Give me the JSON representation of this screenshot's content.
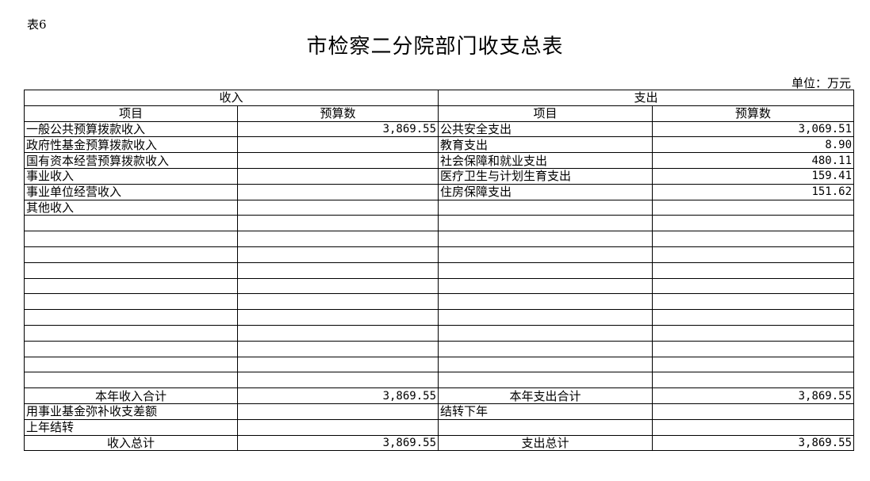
{
  "table_tag": "表6",
  "title": "市检察二分院部门收支总表",
  "unit": "单位：万元",
  "header": {
    "income": "收入",
    "expense": "支出",
    "item": "项目",
    "budget": "预算数"
  },
  "rows": [
    [
      "一般公共预算拨款收入",
      "3,869.55",
      "公共安全支出",
      "3,069.51"
    ],
    [
      "政府性基金预算拨款收入",
      "",
      "教育支出",
      "8.90"
    ],
    [
      "国有资本经营预算拨款收入",
      "",
      "社会保障和就业支出",
      "480.11"
    ],
    [
      "事业收入",
      "",
      "医疗卫生与计划生育支出",
      "159.41"
    ],
    [
      "事业单位经营收入",
      "",
      "住房保障支出",
      "151.62"
    ],
    [
      "其他收入",
      "",
      "",
      ""
    ],
    [
      "",
      "",
      "",
      ""
    ],
    [
      "",
      "",
      "",
      ""
    ],
    [
      "",
      "",
      "",
      ""
    ],
    [
      "",
      "",
      "",
      ""
    ],
    [
      "",
      "",
      "",
      ""
    ],
    [
      "",
      "",
      "",
      ""
    ],
    [
      "",
      "",
      "",
      ""
    ],
    [
      "",
      "",
      "",
      ""
    ],
    [
      "",
      "",
      "",
      ""
    ],
    [
      "",
      "",
      "",
      ""
    ],
    [
      "",
      "",
      "",
      ""
    ]
  ],
  "summary": [
    [
      "本年收入合计",
      "3,869.55",
      "本年支出合计",
      "3,869.55"
    ],
    [
      "用事业基金弥补收支差额",
      "",
      "结转下年",
      ""
    ],
    [
      "上年结转",
      "",
      "",
      ""
    ],
    [
      "收入总计",
      "3,869.55",
      "支出总计",
      "3,869.55"
    ]
  ]
}
